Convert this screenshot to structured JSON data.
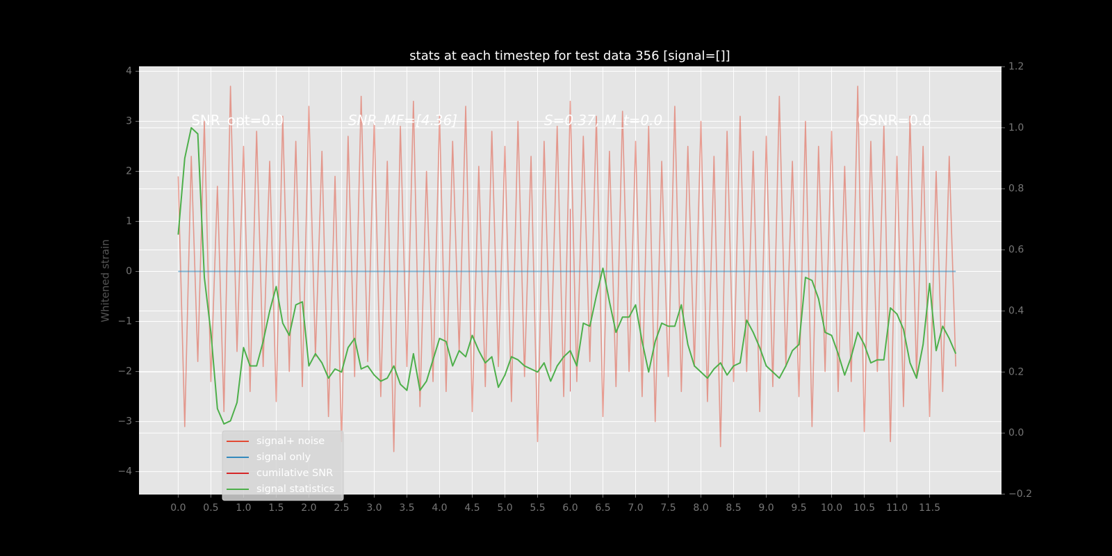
{
  "chart_data": {
    "type": "line",
    "title": "stats at each timestep for test data 356 [signal=[]]",
    "y_label": "Whitened strain",
    "annotations": [
      "SNR_opt=0.0",
      "SNR_MF=[4.36]",
      "S=0.37, M_t=0.0",
      "OSNR=0.0"
    ],
    "x": [
      0.0,
      0.1,
      0.2,
      0.3,
      0.4,
      0.5,
      0.6,
      0.7,
      0.8,
      0.9,
      1.0,
      1.1,
      1.2,
      1.3,
      1.4,
      1.5,
      1.6,
      1.7,
      1.8,
      1.9,
      2.0,
      2.1,
      2.2,
      2.3,
      2.4,
      2.5,
      2.6,
      2.7,
      2.8,
      2.9,
      3.0,
      3.1,
      3.2,
      3.3,
      3.4,
      3.5,
      3.6,
      3.7,
      3.8,
      3.9,
      4.0,
      4.1,
      4.2,
      4.3,
      4.4,
      4.5,
      4.6,
      4.7,
      4.8,
      4.9,
      5.0,
      5.1,
      5.2,
      5.3,
      5.4,
      5.5,
      5.6,
      5.7,
      5.8,
      5.9,
      6.0,
      6.1,
      6.2,
      6.3,
      6.4,
      6.5,
      6.6,
      6.7,
      6.8,
      6.9,
      7.0,
      7.1,
      7.2,
      7.3,
      7.4,
      7.5,
      7.6,
      7.7,
      7.8,
      7.9,
      8.0,
      8.1,
      8.2,
      8.3,
      8.4,
      8.5,
      8.6,
      8.7,
      8.8,
      8.9,
      9.0,
      9.1,
      9.2,
      9.3,
      9.4,
      9.5,
      9.6,
      9.7,
      9.8,
      9.9,
      10.0,
      10.1,
      10.2,
      10.3,
      10.4,
      10.5,
      10.6,
      10.7,
      10.8,
      10.9,
      11.0,
      11.1,
      11.2,
      11.3,
      11.4,
      11.5,
      11.6,
      11.7,
      11.8,
      11.9
    ],
    "series": [
      {
        "name": "signal+ noise",
        "color": "#e24a33",
        "values": [
          1.9,
          -3.1,
          2.3,
          -1.8,
          3.0,
          -2.2,
          1.7,
          -2.8,
          3.7,
          -1.6,
          2.5,
          -2.4,
          2.8,
          -1.9,
          2.2,
          -2.6,
          3.1,
          -2.0,
          2.6,
          -2.3,
          3.3,
          -1.7,
          2.4,
          -2.9,
          1.9,
          -3.4,
          2.7,
          -2.1,
          3.5,
          -1.8,
          3.0,
          -2.5,
          2.2,
          -3.6,
          2.9,
          -1.9,
          3.4,
          -2.7,
          2.0,
          -2.2,
          3.1,
          -2.4,
          2.6,
          -1.6,
          3.3,
          -2.8,
          2.1,
          -2.3,
          2.8,
          -1.9,
          2.5,
          -2.6,
          3.0,
          -2.1,
          2.3,
          -3.4,
          2.6,
          -2.0,
          2.9,
          -2.5,
          3.4,
          -2.2,
          2.7,
          -1.8,
          3.1,
          -2.9,
          2.4,
          -2.3,
          3.2,
          -2.0,
          2.6,
          -2.5,
          2.9,
          -3.0,
          2.2,
          -2.1,
          3.3,
          -2.4,
          2.5,
          -1.9,
          3.0,
          -2.6,
          2.3,
          -3.5,
          2.8,
          -2.2,
          3.1,
          -2.0,
          2.4,
          -2.8,
          2.7,
          -2.3,
          3.5,
          -1.9,
          2.2,
          -2.5,
          3.0,
          -3.1,
          2.5,
          -2.0,
          2.8,
          -2.4,
          2.1,
          -2.2,
          3.7,
          -3.2,
          2.6,
          -2.0,
          2.9,
          -3.4,
          2.3,
          -2.7,
          3.1,
          -2.1,
          2.5,
          -2.9,
          2.0,
          -2.4,
          2.3,
          -1.9
        ]
      },
      {
        "name": "signal only",
        "color": "#348abd",
        "x": [
          0.0,
          11.9
        ],
        "values": [
          0,
          0
        ]
      },
      {
        "name": "cumilative SNR",
        "color": "#d62728",
        "x": [
          6.0,
          6.0
        ],
        "values": [
          1.25,
          -2.4
        ]
      },
      {
        "name": "signal statistics",
        "color": "#4daf4a",
        "axis": "y2",
        "values": [
          0.65,
          0.9,
          1.0,
          0.98,
          0.51,
          0.33,
          0.08,
          0.03,
          0.04,
          0.1,
          0.28,
          0.22,
          0.22,
          0.3,
          0.4,
          0.48,
          0.36,
          0.32,
          0.42,
          0.43,
          0.22,
          0.26,
          0.23,
          0.18,
          0.21,
          0.2,
          0.28,
          0.31,
          0.21,
          0.22,
          0.19,
          0.17,
          0.18,
          0.22,
          0.16,
          0.14,
          0.26,
          0.14,
          0.17,
          0.24,
          0.31,
          0.3,
          0.22,
          0.27,
          0.25,
          0.32,
          0.27,
          0.23,
          0.25,
          0.15,
          0.19,
          0.25,
          0.24,
          0.22,
          0.21,
          0.2,
          0.23,
          0.17,
          0.22,
          0.25,
          0.27,
          0.22,
          0.36,
          0.35,
          0.45,
          0.54,
          0.43,
          0.33,
          0.38,
          0.38,
          0.42,
          0.3,
          0.2,
          0.3,
          0.36,
          0.35,
          0.35,
          0.42,
          0.29,
          0.22,
          0.2,
          0.18,
          0.21,
          0.23,
          0.19,
          0.22,
          0.23,
          0.37,
          0.33,
          0.28,
          0.22,
          0.2,
          0.18,
          0.22,
          0.27,
          0.29,
          0.51,
          0.5,
          0.44,
          0.33,
          0.32,
          0.26,
          0.19,
          0.25,
          0.33,
          0.29,
          0.23,
          0.24,
          0.24,
          0.41,
          0.39,
          0.34,
          0.23,
          0.18,
          0.29,
          0.49,
          0.27,
          0.35,
          0.31,
          0.26
        ]
      }
    ],
    "xlim": [
      -0.6,
      12.6
    ],
    "xticks": [
      {
        "value": 0,
        "label": "0.0"
      },
      0.5,
      {
        "value": 1,
        "label": "1.0"
      },
      1.5,
      {
        "value": 2,
        "label": "2.0"
      },
      2.5,
      {
        "value": 3,
        "label": "3.0"
      },
      3.5,
      {
        "value": 4,
        "label": "4.0"
      },
      4.5,
      {
        "value": 5,
        "label": "5.0"
      },
      5.5,
      {
        "value": 6,
        "label": "6.0"
      },
      6.5,
      {
        "value": 7,
        "label": "7.0"
      },
      7.5,
      {
        "value": 8,
        "label": "8.0"
      },
      8.5,
      {
        "value": 9,
        "label": "9.0"
      },
      9.5,
      {
        "value": 10,
        "label": "10.0"
      },
      10.5,
      {
        "value": 11,
        "label": "11.0"
      },
      11.5
    ],
    "ylim": [
      -4.45,
      4.09
    ],
    "yticks": [
      {
        "value": -4,
        "label": "−4"
      },
      {
        "value": -3,
        "label": "−3"
      },
      {
        "value": -2,
        "label": "−2"
      },
      {
        "value": -1,
        "label": "−1"
      },
      0,
      1,
      2,
      3,
      4
    ],
    "y2lim": [
      -0.2,
      1.2
    ],
    "y2ticks": [
      {
        "value": -0.2,
        "label": "−0.2"
      },
      {
        "value": 0,
        "label": "0.0"
      },
      0.2,
      0.4,
      0.6,
      0.8,
      {
        "value": 1,
        "label": "1.0"
      },
      1.2
    ],
    "grid": true,
    "legend": "lower left"
  }
}
